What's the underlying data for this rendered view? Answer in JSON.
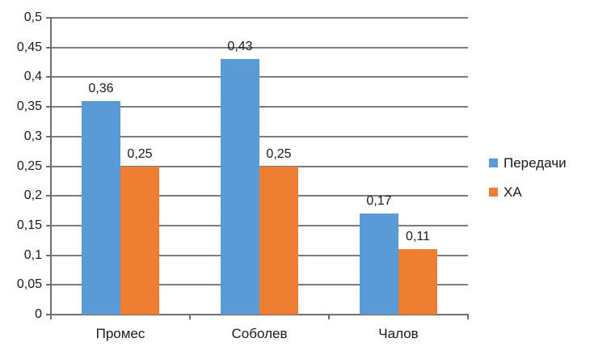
{
  "chart_data": {
    "type": "bar",
    "title": "",
    "categories": [
      "Промес",
      "Соболев",
      "Чалов"
    ],
    "series": [
      {
        "name": "Передачи",
        "color": "#5B9BD5",
        "values": [
          0.36,
          0.43,
          0.17
        ],
        "value_labels": [
          "0,36",
          "0,43",
          "0,17"
        ]
      },
      {
        "name": "ХА",
        "color": "#ED7D31",
        "values": [
          0.25,
          0.25,
          0.11
        ],
        "value_labels": [
          "0,25",
          "0,25",
          "0,11"
        ]
      }
    ],
    "xlabel": "",
    "ylabel": "",
    "ylim": [
      0,
      0.5
    ],
    "ytick_step": 0.05,
    "ytick_labels": [
      "0",
      "0,05",
      "0,1",
      "0,15",
      "0,2",
      "0,25",
      "0,3",
      "0,35",
      "0,4",
      "0,45",
      "0,5"
    ],
    "grid": true,
    "legend_position": "right",
    "decimal_separator": ","
  },
  "colors": {
    "background": "#FFFFFF",
    "gridline": "#7C7C7C",
    "axis": "#6F6F6F",
    "text": "#1A1A1A",
    "series_blue": "#5B9BD5",
    "series_orange": "#ED7D31"
  }
}
